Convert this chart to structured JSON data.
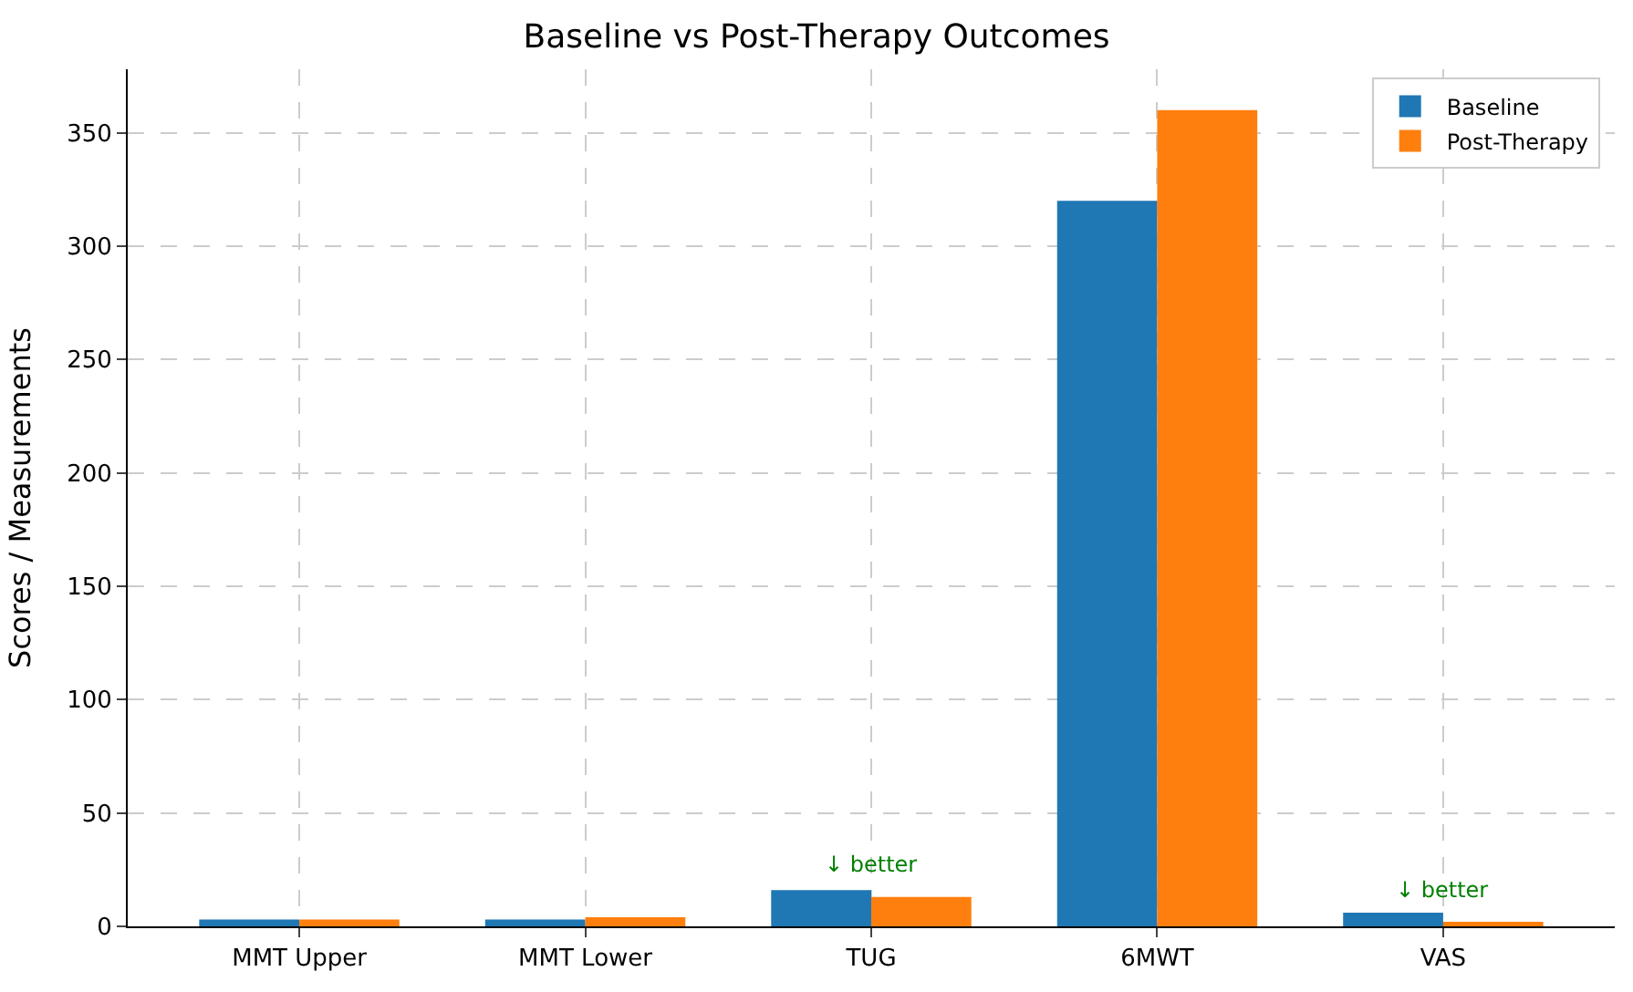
{
  "chart_data": {
    "type": "bar",
    "title": "Baseline vs Post-Therapy Outcomes",
    "ylabel": "Scores / Measurements",
    "categories": [
      "MMT Upper",
      "MMT Lower",
      "TUG",
      "6MWT",
      "VAS"
    ],
    "series": [
      {
        "name": "Baseline",
        "color": "#1f77b4",
        "values": [
          3,
          3,
          16,
          320,
          6
        ]
      },
      {
        "name": "Post-Therapy",
        "color": "#ff7f0e",
        "values": [
          3,
          4,
          13,
          360,
          2
        ]
      }
    ],
    "annotations": [
      {
        "text": "↓ better",
        "x": "TUG",
        "y": 20
      },
      {
        "text": "↓ better",
        "x": "VAS",
        "y": 9
      }
    ],
    "ylim": [
      0,
      378
    ],
    "yticks": [
      0,
      50,
      100,
      150,
      200,
      250,
      300,
      350
    ],
    "grid": true,
    "legend": "top right"
  }
}
